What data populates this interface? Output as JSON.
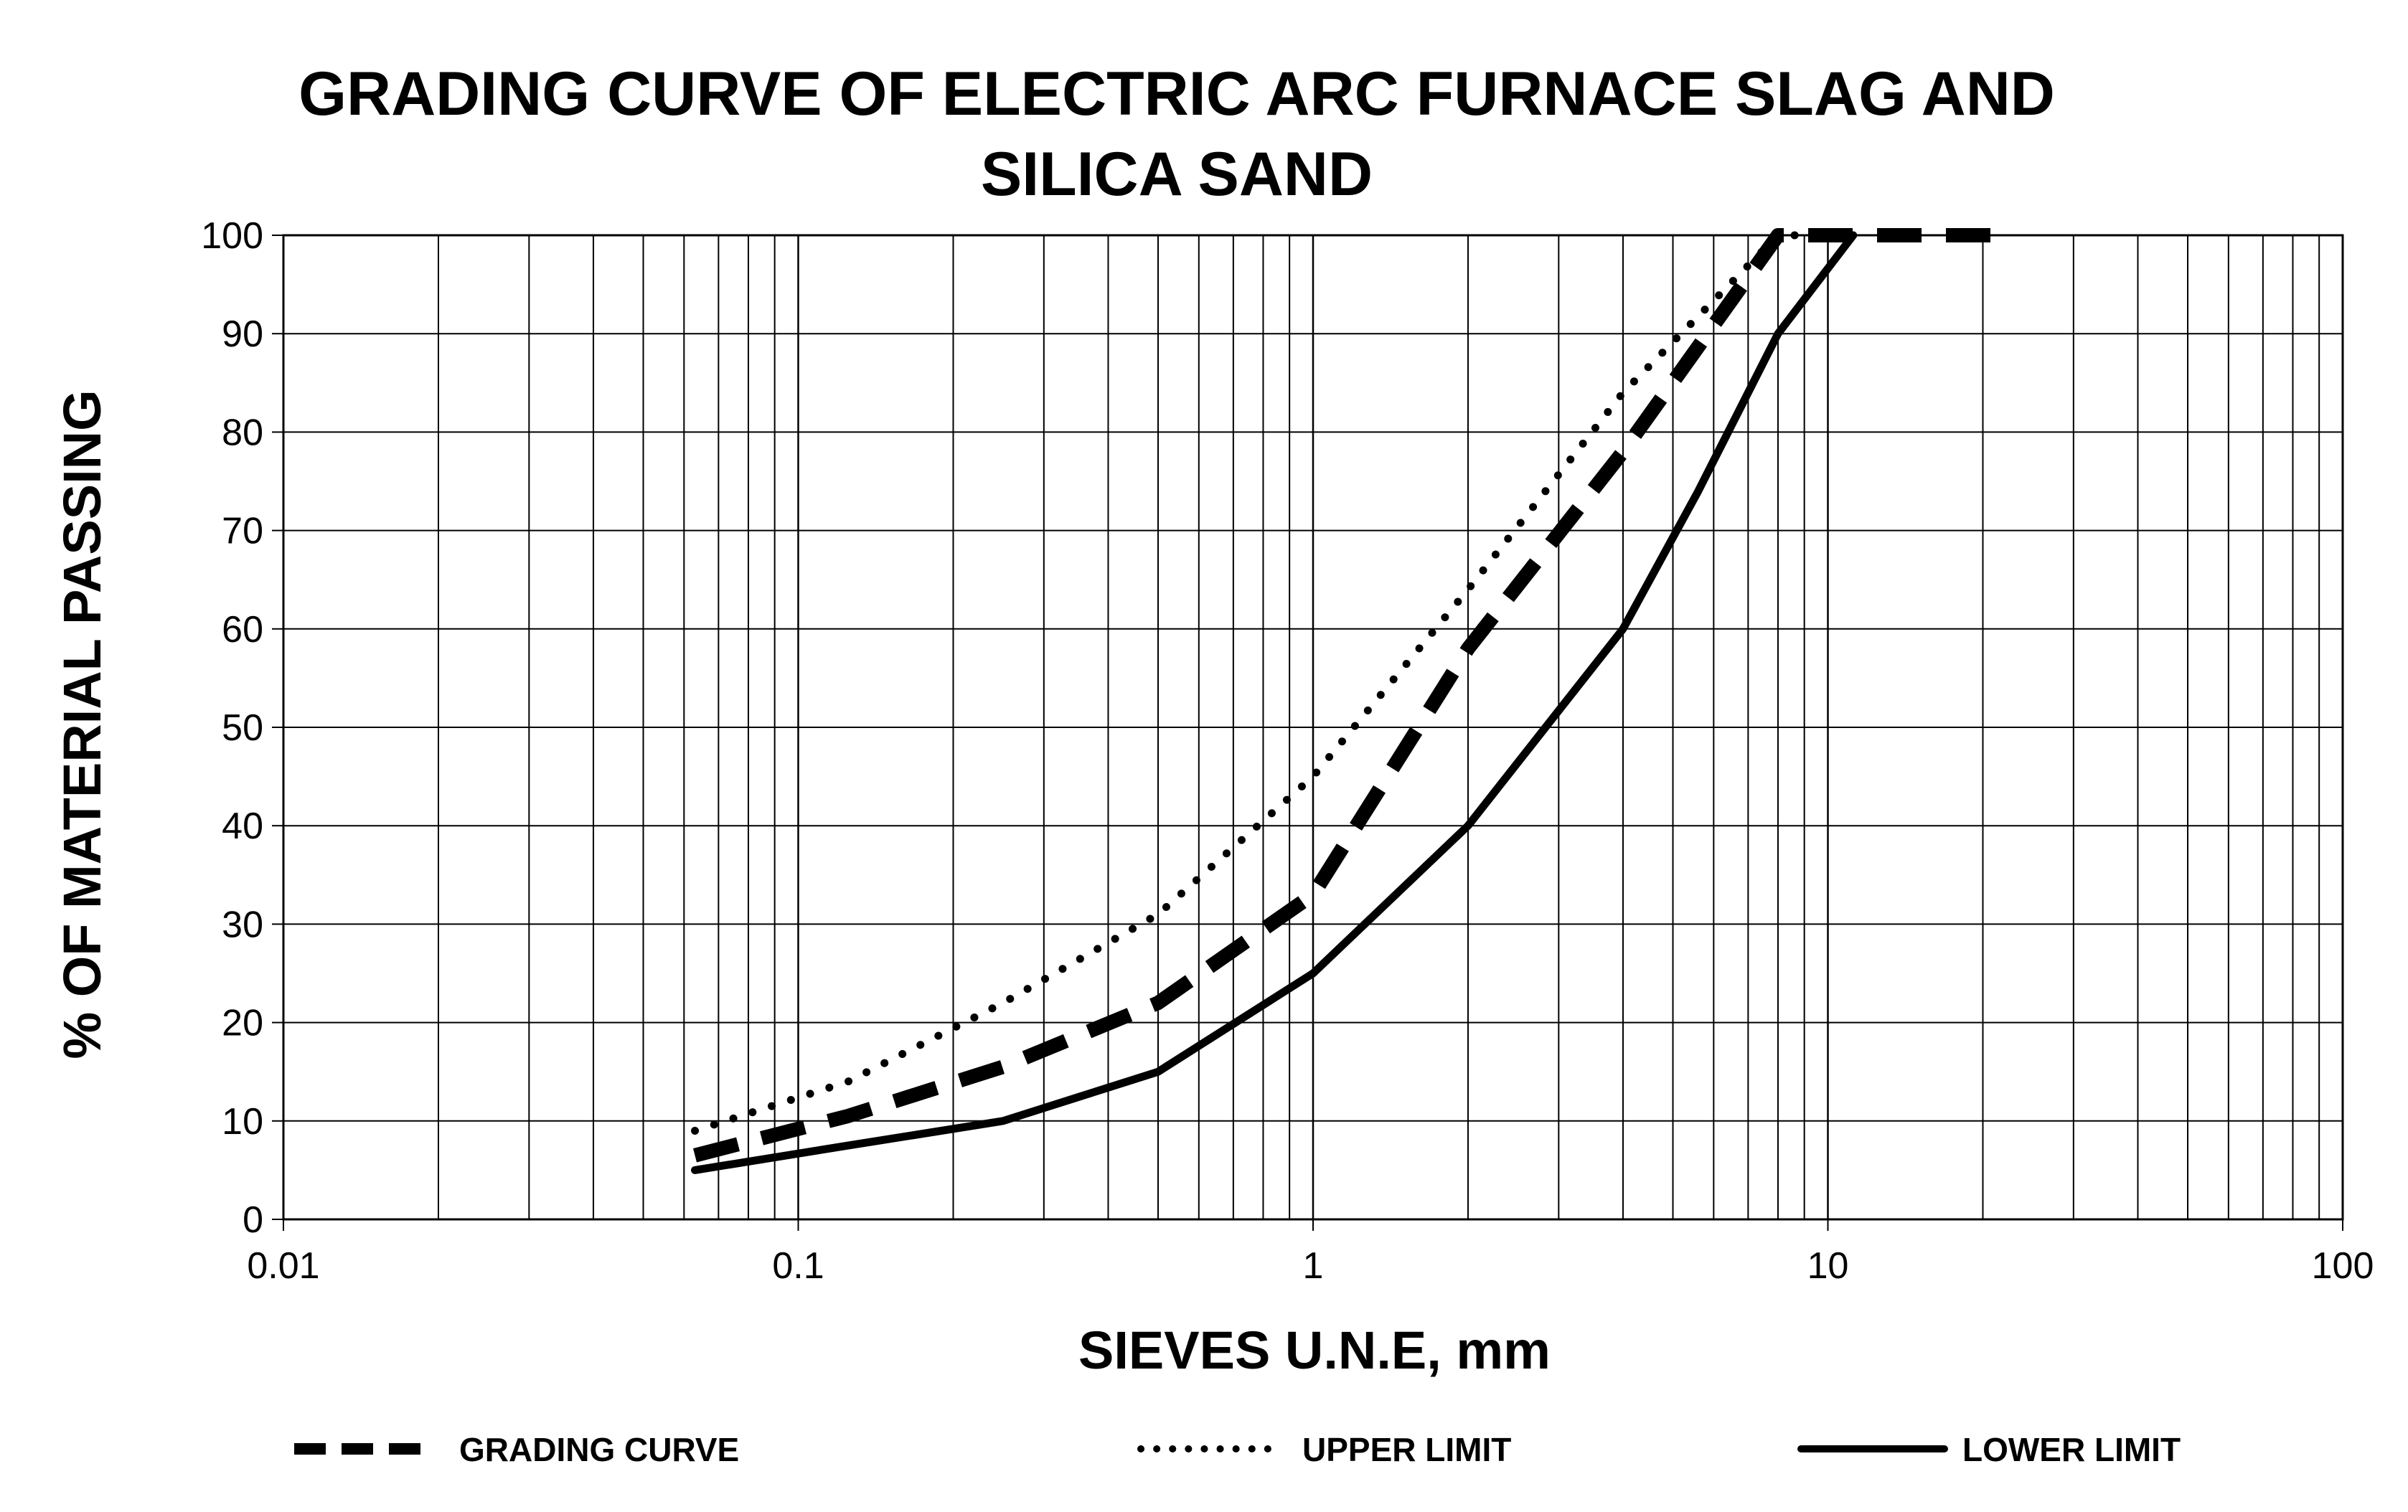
{
  "chart_data": {
    "type": "line",
    "title": [
      "GRADING CURVE OF ELECTRIC ARC FURNACE SLAG AND",
      "SILICA SAND"
    ],
    "xlabel": "SIEVES U.N.E, mm",
    "ylabel": "% OF MATERIAL PASSING",
    "x_scale": "log",
    "xlim": [
      0.01,
      100
    ],
    "ylim": [
      0,
      100
    ],
    "grid": true,
    "x_ticks": [
      0.01,
      0.1,
      1,
      10,
      100
    ],
    "x_tick_labels": [
      "0.01",
      "0.1",
      "1",
      "10",
      "100"
    ],
    "y_ticks": [
      0,
      10,
      20,
      30,
      40,
      50,
      60,
      70,
      80,
      90,
      100
    ],
    "y_tick_labels": [
      "0",
      "10",
      "20",
      "30",
      "40",
      "50",
      "60",
      "70",
      "80",
      "90",
      "100"
    ],
    "legend_position": "bottom",
    "series": [
      {
        "name": "GRADING CURVE",
        "style": "dashed",
        "color": "#000000",
        "x": [
          0.063,
          0.125,
          0.25,
          0.5,
          1,
          2,
          4,
          8,
          11.2,
          22.4
        ],
        "y": [
          6.5,
          10.5,
          15.5,
          22,
          33,
          58,
          78,
          100,
          100,
          100
        ]
      },
      {
        "name": "UPPER LIMIT",
        "style": "dotted",
        "color": "#000000",
        "x": [
          0.063,
          0.125,
          0.25,
          0.5,
          1,
          2,
          4,
          8,
          11.2
        ],
        "y": [
          9,
          14,
          22,
          31,
          45,
          64,
          84,
          100,
          100
        ]
      },
      {
        "name": "LOWER LIMIT",
        "style": "solid",
        "color": "#000000",
        "x": [
          0.063,
          0.125,
          0.25,
          0.5,
          1,
          2,
          4,
          5.6,
          8,
          11.2
        ],
        "y": [
          5,
          7.5,
          10,
          15,
          25,
          40,
          60,
          74,
          90,
          100
        ]
      }
    ]
  }
}
